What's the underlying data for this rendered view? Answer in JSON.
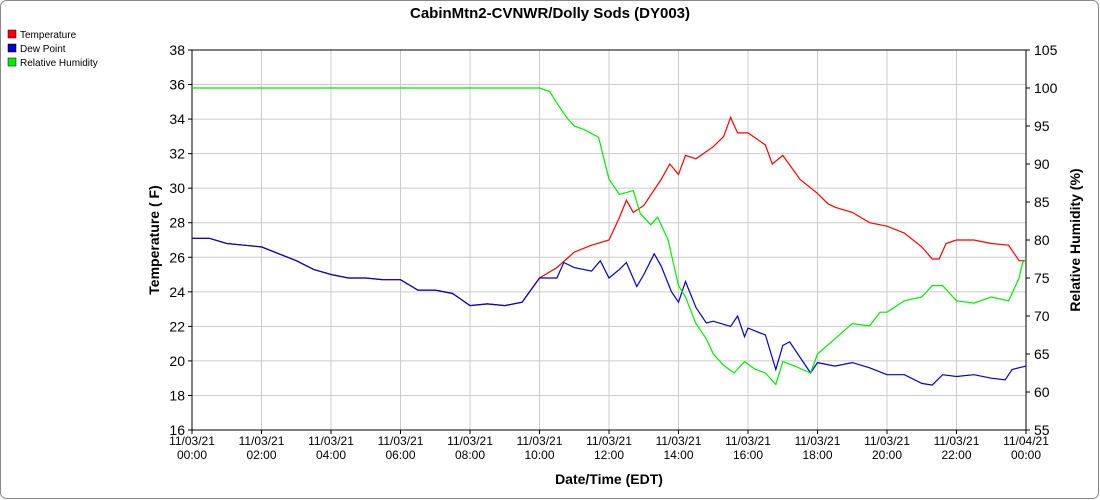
{
  "chart_data": {
    "type": "line",
    "title": "CabinMtn2-CVNWR/Dolly Sods (DY003)",
    "xlabel": "Date/Time (EDT)",
    "ylabel": "Temperature ( F)",
    "y2label": "Relative Humidity (%)",
    "xlim": [
      "11/03/21 00:00",
      "11/04/21 00:00"
    ],
    "xticks": [
      "11/03/21 00:00",
      "11/03/21 02:00",
      "11/03/21 04:00",
      "11/03/21 06:00",
      "11/03/21 08:00",
      "11/03/21 10:00",
      "11/03/21 12:00",
      "11/03/21 14:00",
      "11/03/21 16:00",
      "11/03/21 18:00",
      "11/03/21 20:00",
      "11/03/21 22:00",
      "11/04/21 00:00"
    ],
    "ylim": [
      16,
      38
    ],
    "yticks": [
      16,
      18,
      20,
      22,
      24,
      26,
      28,
      30,
      32,
      34,
      36,
      38
    ],
    "y2lim": [
      55,
      105
    ],
    "y2ticks": [
      55,
      60,
      65,
      70,
      75,
      80,
      85,
      90,
      95,
      100,
      105
    ],
    "grid": true,
    "legend": "top-left",
    "series": [
      {
        "name": "Temperature",
        "color": "#ff0000",
        "x": [
          "11/03/21 00:00",
          "11/03/21 00:30",
          "11/03/21 01:00",
          "11/03/21 01:30",
          "11/03/21 02:00",
          "11/03/21 02:30",
          "11/03/21 03:00",
          "11/03/21 03:30",
          "11/03/21 04:00",
          "11/03/21 04:30",
          "11/03/21 05:00",
          "11/03/21 05:30",
          "11/03/21 06:00",
          "11/03/21 06:30",
          "11/03/21 07:00",
          "11/03/21 07:30",
          "11/03/21 08:00",
          "11/03/21 08:30",
          "11/03/21 09:00",
          "11/03/21 09:30",
          "11/03/21 10:00",
          "11/03/21 10:30",
          "11/03/21 11:00",
          "11/03/21 11:30",
          "11/03/21 12:00",
          "11/03/21 12:18",
          "11/03/21 12:30",
          "11/03/21 12:42",
          "11/03/21 13:00",
          "11/03/21 13:30",
          "11/03/21 13:45",
          "11/03/21 14:00",
          "11/03/21 14:12",
          "11/03/21 14:30",
          "11/03/21 15:00",
          "11/03/21 15:18",
          "11/03/21 15:30",
          "11/03/21 15:42",
          "11/03/21 16:00",
          "11/03/21 16:30",
          "11/03/21 16:42",
          "11/03/21 17:00",
          "11/03/21 17:30",
          "11/03/21 18:00",
          "11/03/21 18:18",
          "11/03/21 18:30",
          "11/03/21 19:00",
          "11/03/21 19:30",
          "11/03/21 20:00",
          "11/03/21 20:30",
          "11/03/21 21:00",
          "11/03/21 21:18",
          "11/03/21 21:30",
          "11/03/21 21:42",
          "11/03/21 22:00",
          "11/03/21 22:30",
          "11/03/21 23:00",
          "11/03/21 23:30",
          "11/03/21 23:48",
          "11/04/21 00:00"
        ],
        "values": [
          27.1,
          27.1,
          26.8,
          26.7,
          26.6,
          26.2,
          25.8,
          25.3,
          25.0,
          24.8,
          24.8,
          24.7,
          24.7,
          24.1,
          24.1,
          23.9,
          23.2,
          23.3,
          23.2,
          23.4,
          24.8,
          25.4,
          26.3,
          26.7,
          27.0,
          28.3,
          29.3,
          28.6,
          29.0,
          30.5,
          31.4,
          30.8,
          31.9,
          31.7,
          32.4,
          33.0,
          34.1,
          33.2,
          33.2,
          32.5,
          31.4,
          31.9,
          30.5,
          29.7,
          29.1,
          28.9,
          28.6,
          28.0,
          27.8,
          27.4,
          26.6,
          25.9,
          25.9,
          26.8,
          27.0,
          27.0,
          26.8,
          26.7,
          25.8,
          25.8
        ]
      },
      {
        "name": "Dew Point",
        "color": "#0000cc",
        "x": [
          "11/03/21 00:00",
          "11/03/21 00:30",
          "11/03/21 01:00",
          "11/03/21 01:30",
          "11/03/21 02:00",
          "11/03/21 02:30",
          "11/03/21 03:00",
          "11/03/21 03:30",
          "11/03/21 04:00",
          "11/03/21 04:30",
          "11/03/21 05:00",
          "11/03/21 05:30",
          "11/03/21 06:00",
          "11/03/21 06:30",
          "11/03/21 07:00",
          "11/03/21 07:30",
          "11/03/21 08:00",
          "11/03/21 08:30",
          "11/03/21 09:00",
          "11/03/21 09:30",
          "11/03/21 10:00",
          "11/03/21 10:30",
          "11/03/21 10:42",
          "11/03/21 11:00",
          "11/03/21 11:30",
          "11/03/21 11:45",
          "11/03/21 12:00",
          "11/03/21 12:18",
          "11/03/21 12:30",
          "11/03/21 12:48",
          "11/03/21 13:00",
          "11/03/21 13:18",
          "11/03/21 13:30",
          "11/03/21 13:48",
          "11/03/21 14:00",
          "11/03/21 14:12",
          "11/03/21 14:30",
          "11/03/21 14:48",
          "11/03/21 15:00",
          "11/03/21 15:30",
          "11/03/21 15:42",
          "11/03/21 15:54",
          "11/03/21 16:00",
          "11/03/21 16:30",
          "11/03/21 16:48",
          "11/03/21 17:00",
          "11/03/21 17:12",
          "11/03/21 17:48",
          "11/03/21 18:00",
          "11/03/21 18:30",
          "11/03/21 19:00",
          "11/03/21 19:30",
          "11/03/21 20:00",
          "11/03/21 20:30",
          "11/03/21 21:00",
          "11/03/21 21:18",
          "11/03/21 21:36",
          "11/03/21 22:00",
          "11/03/21 22:30",
          "11/03/21 23:00",
          "11/03/21 23:24",
          "11/03/21 23:36",
          "11/04/21 00:00"
        ],
        "values": [
          27.1,
          27.1,
          26.8,
          26.7,
          26.6,
          26.2,
          25.8,
          25.3,
          25.0,
          24.8,
          24.8,
          24.7,
          24.7,
          24.1,
          24.1,
          23.9,
          23.2,
          23.3,
          23.2,
          23.4,
          24.8,
          24.8,
          25.7,
          25.4,
          25.2,
          25.8,
          24.8,
          25.3,
          25.7,
          24.3,
          25.0,
          26.2,
          25.5,
          24.0,
          23.4,
          24.6,
          23.1,
          22.2,
          22.3,
          22.0,
          22.6,
          21.4,
          21.9,
          21.5,
          19.5,
          20.9,
          21.1,
          19.3,
          19.9,
          19.7,
          19.9,
          19.6,
          19.2,
          19.2,
          18.7,
          18.6,
          19.2,
          19.1,
          19.2,
          19.0,
          18.9,
          19.5,
          19.7
        ]
      },
      {
        "name": "Relative Humidity",
        "color": "#00ee00",
        "axis": "y2",
        "x": [
          "11/03/21 00:00",
          "11/03/21 10:00",
          "11/03/21 10:18",
          "11/03/21 10:30",
          "11/03/21 10:48",
          "11/03/21 11:00",
          "11/03/21 11:18",
          "11/03/21 11:42",
          "11/03/21 12:00",
          "11/03/21 12:18",
          "11/03/21 12:42",
          "11/03/21 12:54",
          "11/03/21 13:12",
          "11/03/21 13:24",
          "11/03/21 13:42",
          "11/03/21 14:00",
          "11/03/21 14:12",
          "11/03/21 14:30",
          "11/03/21 14:48",
          "11/03/21 15:00",
          "11/03/21 15:18",
          "11/03/21 15:36",
          "11/03/21 15:54",
          "11/03/21 16:12",
          "11/03/21 16:30",
          "11/03/21 16:48",
          "11/03/21 17:00",
          "11/03/21 17:18",
          "11/03/21 17:48",
          "11/03/21 18:00",
          "11/03/21 18:30",
          "11/03/21 19:00",
          "11/03/21 19:30",
          "11/03/21 19:48",
          "11/03/21 20:00",
          "11/03/21 20:30",
          "11/03/21 21:00",
          "11/03/21 21:18",
          "11/03/21 21:36",
          "11/03/21 22:00",
          "11/03/21 22:30",
          "11/03/21 23:00",
          "11/03/21 23:30",
          "11/03/21 23:48",
          "11/03/21 23:54",
          "11/04/21 00:00"
        ],
        "values": [
          100,
          100,
          99.5,
          98,
          96,
          95,
          94.5,
          93.5,
          88,
          86,
          86.5,
          83.5,
          82,
          83,
          80,
          74,
          72.5,
          69,
          67,
          65,
          63.5,
          62.5,
          64,
          63,
          62.5,
          61,
          64,
          63.5,
          62.5,
          65,
          67,
          69,
          68.7,
          70.5,
          70.5,
          72,
          72.5,
          74,
          74,
          72,
          71.7,
          72.5,
          72,
          75,
          77,
          77.5
        ]
      }
    ]
  }
}
